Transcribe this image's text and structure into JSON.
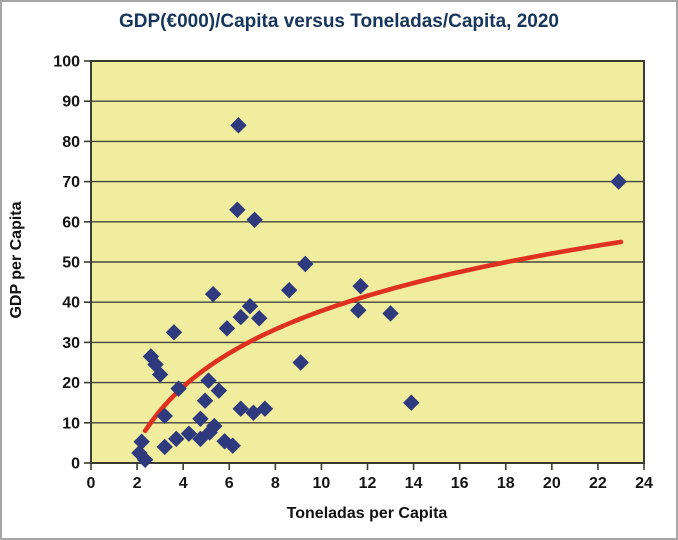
{
  "chart_data": {
    "type": "scatter",
    "title": "GDP(€000)/Capita versus Toneladas/Capita, 2020",
    "xlabel": "Toneladas per Capita",
    "ylabel": "GDP per Capita",
    "xlim": [
      0,
      24
    ],
    "ylim": [
      0,
      100
    ],
    "xticks": [
      0,
      2,
      4,
      6,
      8,
      10,
      12,
      14,
      16,
      18,
      20,
      22,
      24
    ],
    "yticks": [
      0,
      10,
      20,
      30,
      40,
      50,
      60,
      70,
      80,
      90,
      100
    ],
    "grid": "horizontal-only",
    "legend": "none",
    "marker": "diamond",
    "points": [
      [
        2.1,
        2.5
      ],
      [
        2.2,
        5.3
      ],
      [
        2.35,
        0.8
      ],
      [
        2.6,
        26.5
      ],
      [
        2.8,
        24.5
      ],
      [
        3.0,
        22.0
      ],
      [
        3.2,
        4.0
      ],
      [
        3.2,
        11.7
      ],
      [
        3.6,
        32.5
      ],
      [
        3.7,
        6.0
      ],
      [
        3.8,
        18.5
      ],
      [
        4.25,
        7.3
      ],
      [
        4.75,
        6.0
      ],
      [
        4.75,
        11.0
      ],
      [
        4.95,
        15.5
      ],
      [
        5.1,
        20.5
      ],
      [
        5.15,
        7.6
      ],
      [
        5.3,
        42.0
      ],
      [
        5.35,
        9.2
      ],
      [
        5.55,
        18.0
      ],
      [
        5.8,
        5.4
      ],
      [
        5.9,
        33.5
      ],
      [
        6.15,
        4.3
      ],
      [
        6.35,
        63.0
      ],
      [
        6.4,
        84.0
      ],
      [
        6.5,
        13.5
      ],
      [
        6.5,
        36.3
      ],
      [
        6.9,
        39.0
      ],
      [
        7.05,
        12.5
      ],
      [
        7.1,
        60.5
      ],
      [
        7.3,
        36.0
      ],
      [
        7.55,
        13.5
      ],
      [
        8.6,
        43.0
      ],
      [
        9.1,
        25.0
      ],
      [
        9.3,
        49.5
      ],
      [
        11.6,
        38.0
      ],
      [
        11.7,
        44.0
      ],
      [
        13.0,
        37.2
      ],
      [
        13.9,
        15.0
      ],
      [
        22.9,
        70.0
      ]
    ],
    "trendline": {
      "type": "logarithmic",
      "formula": "y = 20.6*ln(x) - 9.6",
      "slope": 20.6,
      "intercept": -9.6,
      "x_start": 2.35,
      "x_end": 23.0
    },
    "colors": {
      "figure_background": "#ffffff",
      "plot_background": "#f0ed9f",
      "plot_border": "#3a3b31",
      "gridline": "#45453c",
      "marker_fill": "#2e3a7d",
      "trendline": "#e0301e",
      "title_text": "#17365d",
      "axis_text": "#141414"
    }
  }
}
